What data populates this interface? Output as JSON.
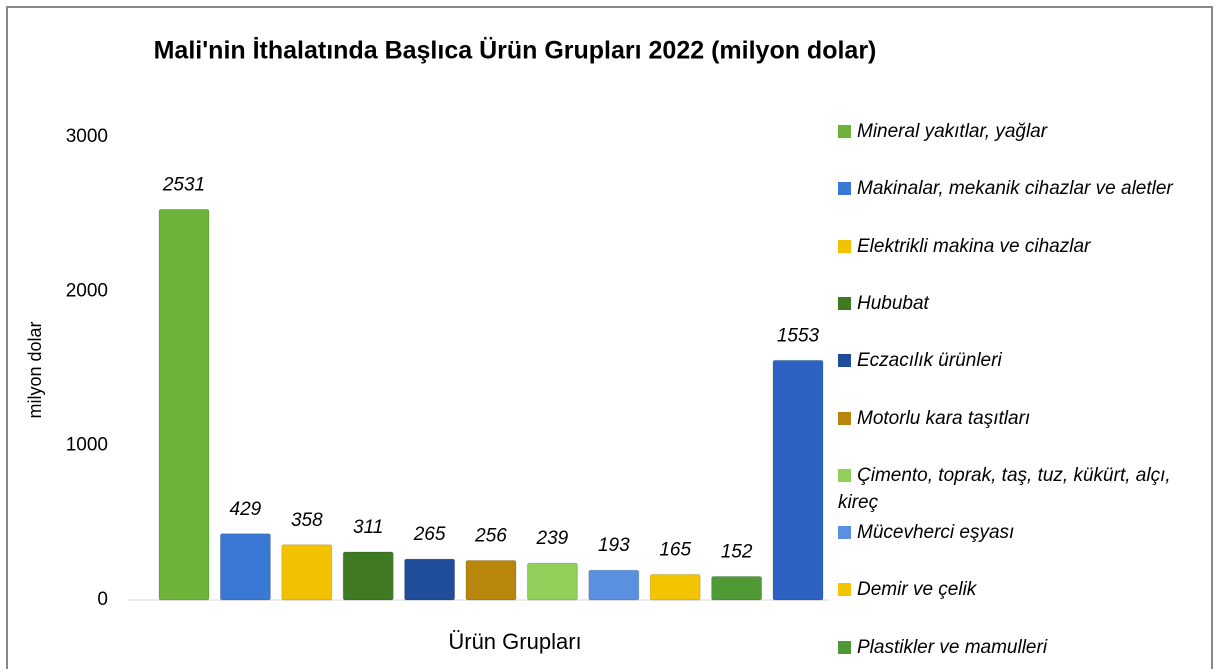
{
  "chart_data": {
    "type": "bar",
    "title": "Mali'nin İthalatında Başlıca Ürün Grupları 2022 (milyon dolar)",
    "xlabel": "Ürün Grupları",
    "ylabel": "milyon dolar",
    "categories": [
      "Mineral yakıtlar, yağlar",
      "Makinalar, mekanik cihazlar ve aletler",
      "Elektrikli makina ve cihazlar",
      "Hububat",
      "Eczacılık ürünleri",
      "Motorlu kara taşıtları",
      "Çimento, toprak, taş, tuz, kükürt, alçı, kireç",
      "Mücevherci eşyası",
      "Demir ve çelik",
      "Plastikler ve mamulleri",
      null
    ],
    "values": [
      2531,
      429,
      358,
      311,
      265,
      256,
      239,
      193,
      165,
      152,
      1553
    ],
    "colors": [
      "#6db33a",
      "#3a78d6",
      "#f2c200",
      "#3f7a23",
      "#1f4d9a",
      "#b8860b",
      "#8fcf5a",
      "#5b8fe0",
      "#f5c400",
      "#4f9a35",
      "#2e62c2"
    ],
    "ylim": [
      0,
      3000
    ],
    "yticks": [
      0,
      1000,
      2000,
      3000
    ],
    "grid": false,
    "legend": "right"
  }
}
